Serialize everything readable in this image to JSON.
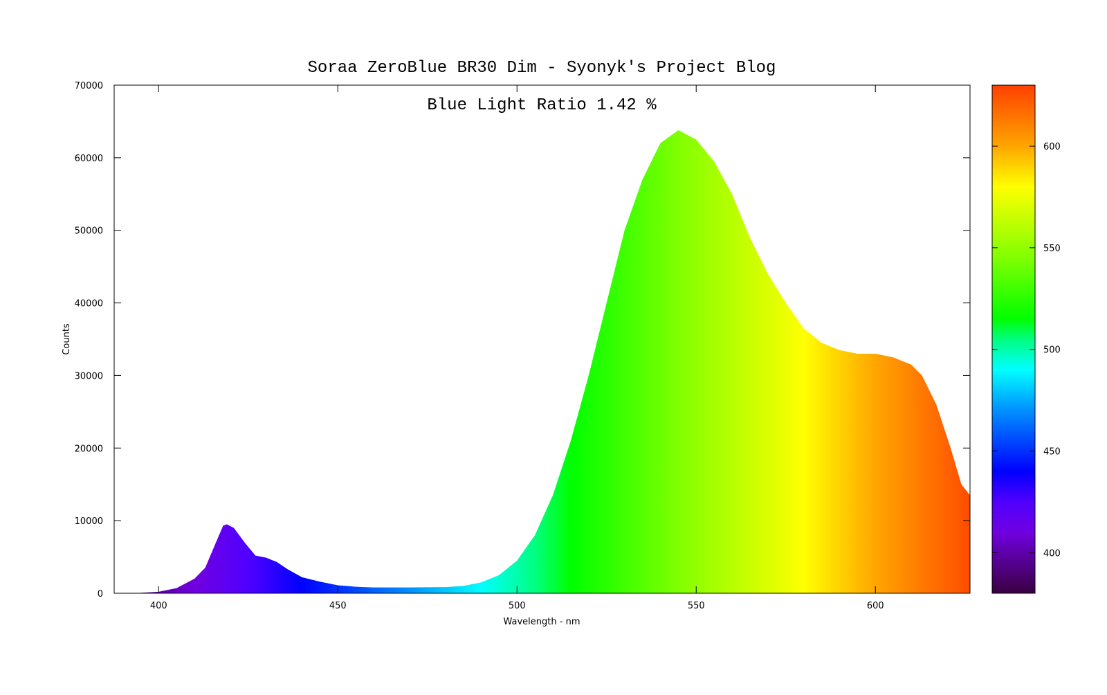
{
  "chart_data": {
    "type": "area",
    "title": "Soraa ZeroBlue BR30 Dim - Syonyk's Project Blog",
    "annotation": "Blue Light Ratio 1.42 %",
    "xlabel": "Wavelength - nm",
    "ylabel": "Counts",
    "x": [
      393,
      400,
      405,
      410,
      413,
      416,
      418,
      419,
      421,
      424,
      427,
      430,
      433,
      436,
      440,
      445,
      450,
      455,
      460,
      470,
      480,
      485,
      490,
      495,
      500,
      505,
      510,
      515,
      520,
      525,
      530,
      535,
      540,
      545,
      550,
      555,
      560,
      565,
      570,
      575,
      580,
      585,
      590,
      595,
      600,
      605,
      610,
      613,
      617,
      621,
      624,
      626.4
    ],
    "values": [
      0,
      200,
      700,
      2000,
      3500,
      7000,
      9300,
      9500,
      9000,
      7000,
      5200,
      4900,
      4300,
      3300,
      2200,
      1600,
      1100,
      900,
      800,
      800,
      850,
      1000,
      1500,
      2500,
      4500,
      8000,
      13500,
      21000,
      30000,
      40000,
      50000,
      57000,
      62000,
      63800,
      62500,
      59500,
      55000,
      49000,
      44000,
      40000,
      36500,
      34500,
      33500,
      33000,
      33000,
      32500,
      31500,
      30000,
      26000,
      20000,
      15000,
      13500
    ],
    "xlim": [
      387.6,
      626.4
    ],
    "ylim": [
      0,
      70000
    ],
    "xticks": [
      400,
      450,
      500,
      550,
      600
    ],
    "yticks": [
      0,
      10000,
      20000,
      30000,
      40000,
      50000,
      60000,
      70000
    ],
    "colorbar_lim": [
      380,
      630
    ],
    "colorbar_ticks": [
      400,
      450,
      500,
      550,
      600
    ],
    "colormap": [
      {
        "value": 380,
        "color": "#3a0040"
      },
      {
        "value": 410,
        "color": "#7000e0"
      },
      {
        "value": 425,
        "color": "#5000ff"
      },
      {
        "value": 440,
        "color": "#0000ff"
      },
      {
        "value": 470,
        "color": "#0090ff"
      },
      {
        "value": 490,
        "color": "#00ffff"
      },
      {
        "value": 505,
        "color": "#00ff80"
      },
      {
        "value": 515,
        "color": "#00ff00"
      },
      {
        "value": 545,
        "color": "#80ff00"
      },
      {
        "value": 580,
        "color": "#ffff00"
      },
      {
        "value": 600,
        "color": "#ffa500"
      },
      {
        "value": 630,
        "color": "#ff4000"
      }
    ]
  }
}
